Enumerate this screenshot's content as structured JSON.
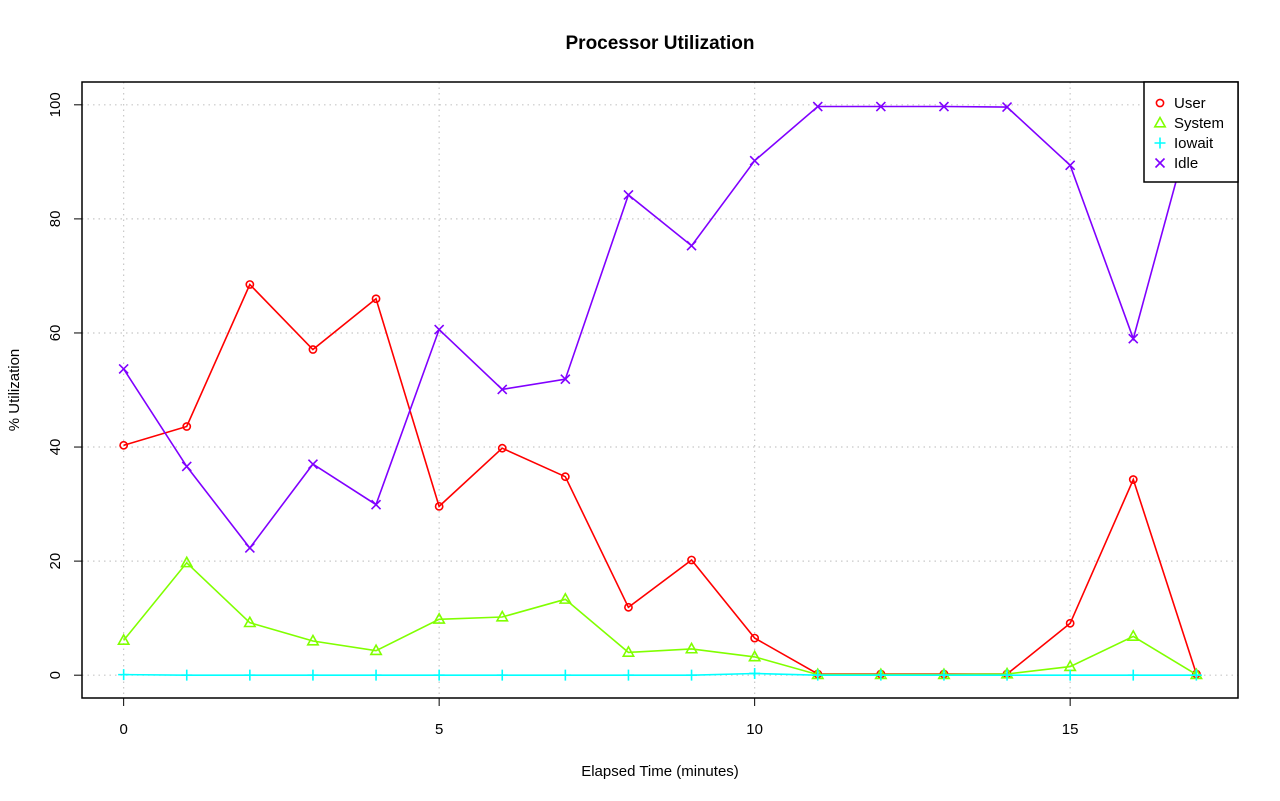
{
  "chart_data": {
    "type": "line",
    "title": "Processor Utilization",
    "xlabel": "Elapsed Time (minutes)",
    "ylabel": "% Utilization",
    "xlim": [
      -0.66,
      17.66
    ],
    "ylim": [
      -4,
      104
    ],
    "xticks": [
      0,
      5,
      10,
      15
    ],
    "yticks": [
      0,
      20,
      40,
      60,
      80,
      100
    ],
    "grid": true,
    "legend_position": "top-right",
    "x": [
      0,
      1,
      2,
      3,
      4,
      5,
      6,
      7,
      8,
      9,
      10,
      11,
      12,
      13,
      14,
      15,
      16,
      17
    ],
    "series": [
      {
        "name": "User",
        "color": "#FF0000",
        "marker": "circle",
        "values": [
          40.3,
          43.6,
          68.5,
          57.1,
          66.0,
          29.6,
          39.8,
          34.8,
          11.9,
          20.2,
          6.5,
          0.2,
          0.2,
          0.2,
          0.2,
          9.1,
          34.3,
          0.2
        ]
      },
      {
        "name": "System",
        "color": "#80FF00",
        "marker": "triangle",
        "values": [
          6.1,
          19.7,
          9.2,
          6.0,
          4.3,
          9.8,
          10.2,
          13.3,
          4.0,
          4.6,
          3.2,
          0.1,
          0.1,
          0.1,
          0.2,
          1.5,
          6.8,
          0.1
        ]
      },
      {
        "name": "Iowait",
        "color": "#00FFFF",
        "marker": "plus",
        "values": [
          0.1,
          0.0,
          0.0,
          0.0,
          0.0,
          0.0,
          0.0,
          0.0,
          0.0,
          0.0,
          0.3,
          0.0,
          0.0,
          0.0,
          0.0,
          0.0,
          0.0,
          0.0
        ]
      },
      {
        "name": "Idle",
        "color": "#8000FF",
        "marker": "x",
        "values": [
          53.7,
          36.6,
          22.3,
          37.0,
          29.9,
          60.6,
          50.1,
          51.9,
          84.2,
          75.3,
          90.2,
          99.7,
          99.7,
          99.7,
          99.6,
          89.4,
          59.0,
          99.7
        ]
      }
    ]
  }
}
